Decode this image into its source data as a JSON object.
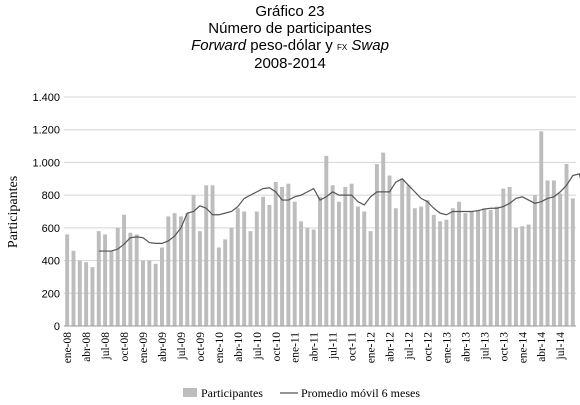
{
  "header": {
    "line1": "Gráfico 23",
    "line2": "Número de participantes",
    "line3_italic_a": "Forward",
    "line3_plain": " peso-dólar y ",
    "line3_smallcaps": "fx",
    "line3_italic_b": "Swap",
    "line4": "2008-2014"
  },
  "chart_data": {
    "type": "bar",
    "title": "Número de participantes",
    "ylabel": "Participantes",
    "xlabel": "",
    "ylim": [
      0,
      1400
    ],
    "yticks": [
      0,
      200,
      400,
      600,
      800,
      1000,
      1200,
      1400
    ],
    "ytick_labels": [
      "0",
      "200",
      "400",
      "600",
      "800",
      "1.000",
      "1.200",
      "1.400"
    ],
    "grid": "horizontal",
    "legend_position": "bottom",
    "x_tick_labels": [
      "ene-08",
      "abr-08",
      "jul-08",
      "oct-08",
      "ene-09",
      "abr-09",
      "jul-09",
      "oct-09",
      "ene-10",
      "abr-10",
      "jul-10",
      "oct-10",
      "ene-11",
      "abr-11",
      "jul-11",
      "oct-11",
      "ene-12",
      "abr-12",
      "jul-12",
      "oct-12",
      "ene-13",
      "abr-13",
      "jul-13",
      "oct-13",
      "ene-14",
      "abr-14",
      "jul-14"
    ],
    "series": [
      {
        "name": "Participantes",
        "type": "bar",
        "color": "#bdbdbd",
        "values": [
          560,
          460,
          400,
          390,
          360,
          580,
          560,
          460,
          600,
          680,
          570,
          560,
          400,
          400,
          380,
          480,
          670,
          690,
          670,
          690,
          800,
          580,
          860,
          860,
          480,
          530,
          600,
          720,
          700,
          580,
          700,
          790,
          740,
          880,
          850,
          870,
          760,
          640,
          600,
          590,
          790,
          1040,
          860,
          760,
          850,
          870,
          730,
          700,
          580,
          990,
          1060,
          920,
          720,
          900,
          860,
          720,
          730,
          770,
          680,
          640,
          650,
          720,
          760,
          690,
          700,
          710,
          720,
          710,
          730,
          840,
          850,
          600,
          610,
          620,
          800,
          1190,
          890,
          890,
          810,
          990,
          780
        ],
        "data_labels": []
      },
      {
        "name": "Promedio móvil 6 meses",
        "type": "line",
        "color": "#555555",
        "start_index": 5,
        "values": [
          458,
          458,
          458,
          470,
          500,
          540,
          545,
          540,
          510,
          505,
          505,
          520,
          550,
          600,
          690,
          700,
          735,
          720,
          680,
          680,
          690,
          700,
          730,
          780,
          800,
          820,
          840,
          845,
          820,
          770,
          770,
          790,
          800,
          820,
          840,
          770,
          790,
          820,
          800,
          800,
          800,
          760,
          740,
          790,
          820,
          820,
          820,
          880,
          900,
          860,
          820,
          780,
          760,
          720,
          690,
          680,
          700,
          700,
          700,
          700,
          705,
          715,
          720,
          720,
          730,
          750,
          780,
          790,
          770,
          750,
          760,
          780,
          790,
          820,
          860,
          920,
          930,
          800
        ]
      }
    ]
  }
}
